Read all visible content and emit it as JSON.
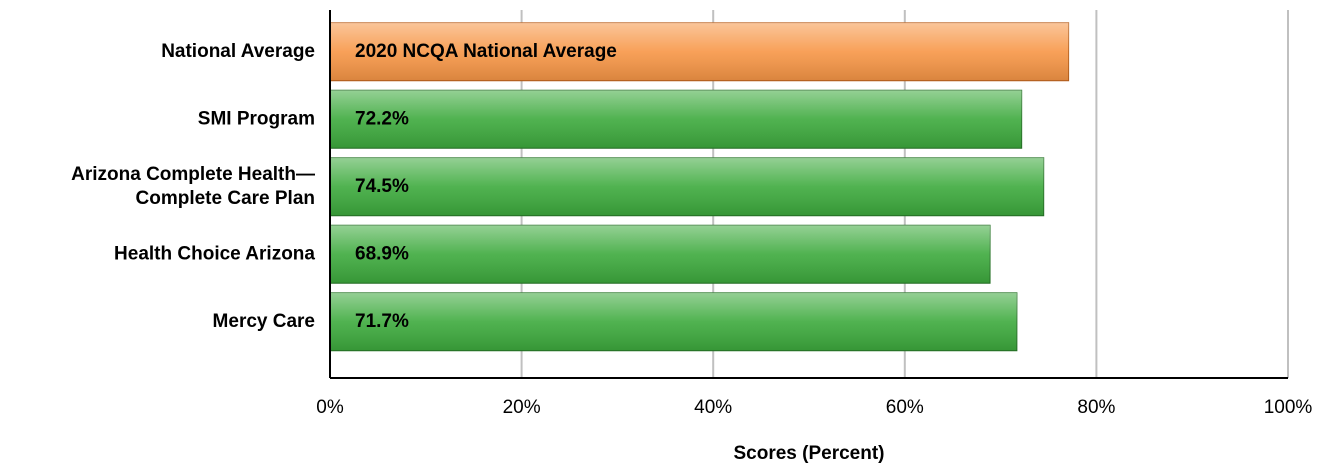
{
  "chart_data": {
    "type": "bar",
    "orientation": "horizontal",
    "categories": [
      "National Average",
      "SMI Program",
      "Arizona Complete Health—\nComplete Care Plan",
      "Health Choice Arizona",
      "Mercy Care"
    ],
    "values": [
      77.1,
      72.2,
      74.5,
      68.9,
      71.7
    ],
    "value_labels": [
      "2020 NCQA National Average",
      "72.2%",
      "74.5%",
      "68.9%",
      "71.7%"
    ],
    "colors": [
      "#f79646",
      "#3daa3d",
      "#3daa3d",
      "#3daa3d",
      "#3daa3d"
    ],
    "xlabel": "Scores (Percent)",
    "xlim": [
      0,
      100
    ],
    "xticks": [
      {
        "value": 0,
        "label": "0%"
      },
      {
        "value": 20,
        "label": "20%"
      },
      {
        "value": 40,
        "label": "40%"
      },
      {
        "value": 60,
        "label": "60%"
      },
      {
        "value": 80,
        "label": "80%"
      },
      {
        "value": 100,
        "label": "100%"
      }
    ],
    "grid": true
  }
}
